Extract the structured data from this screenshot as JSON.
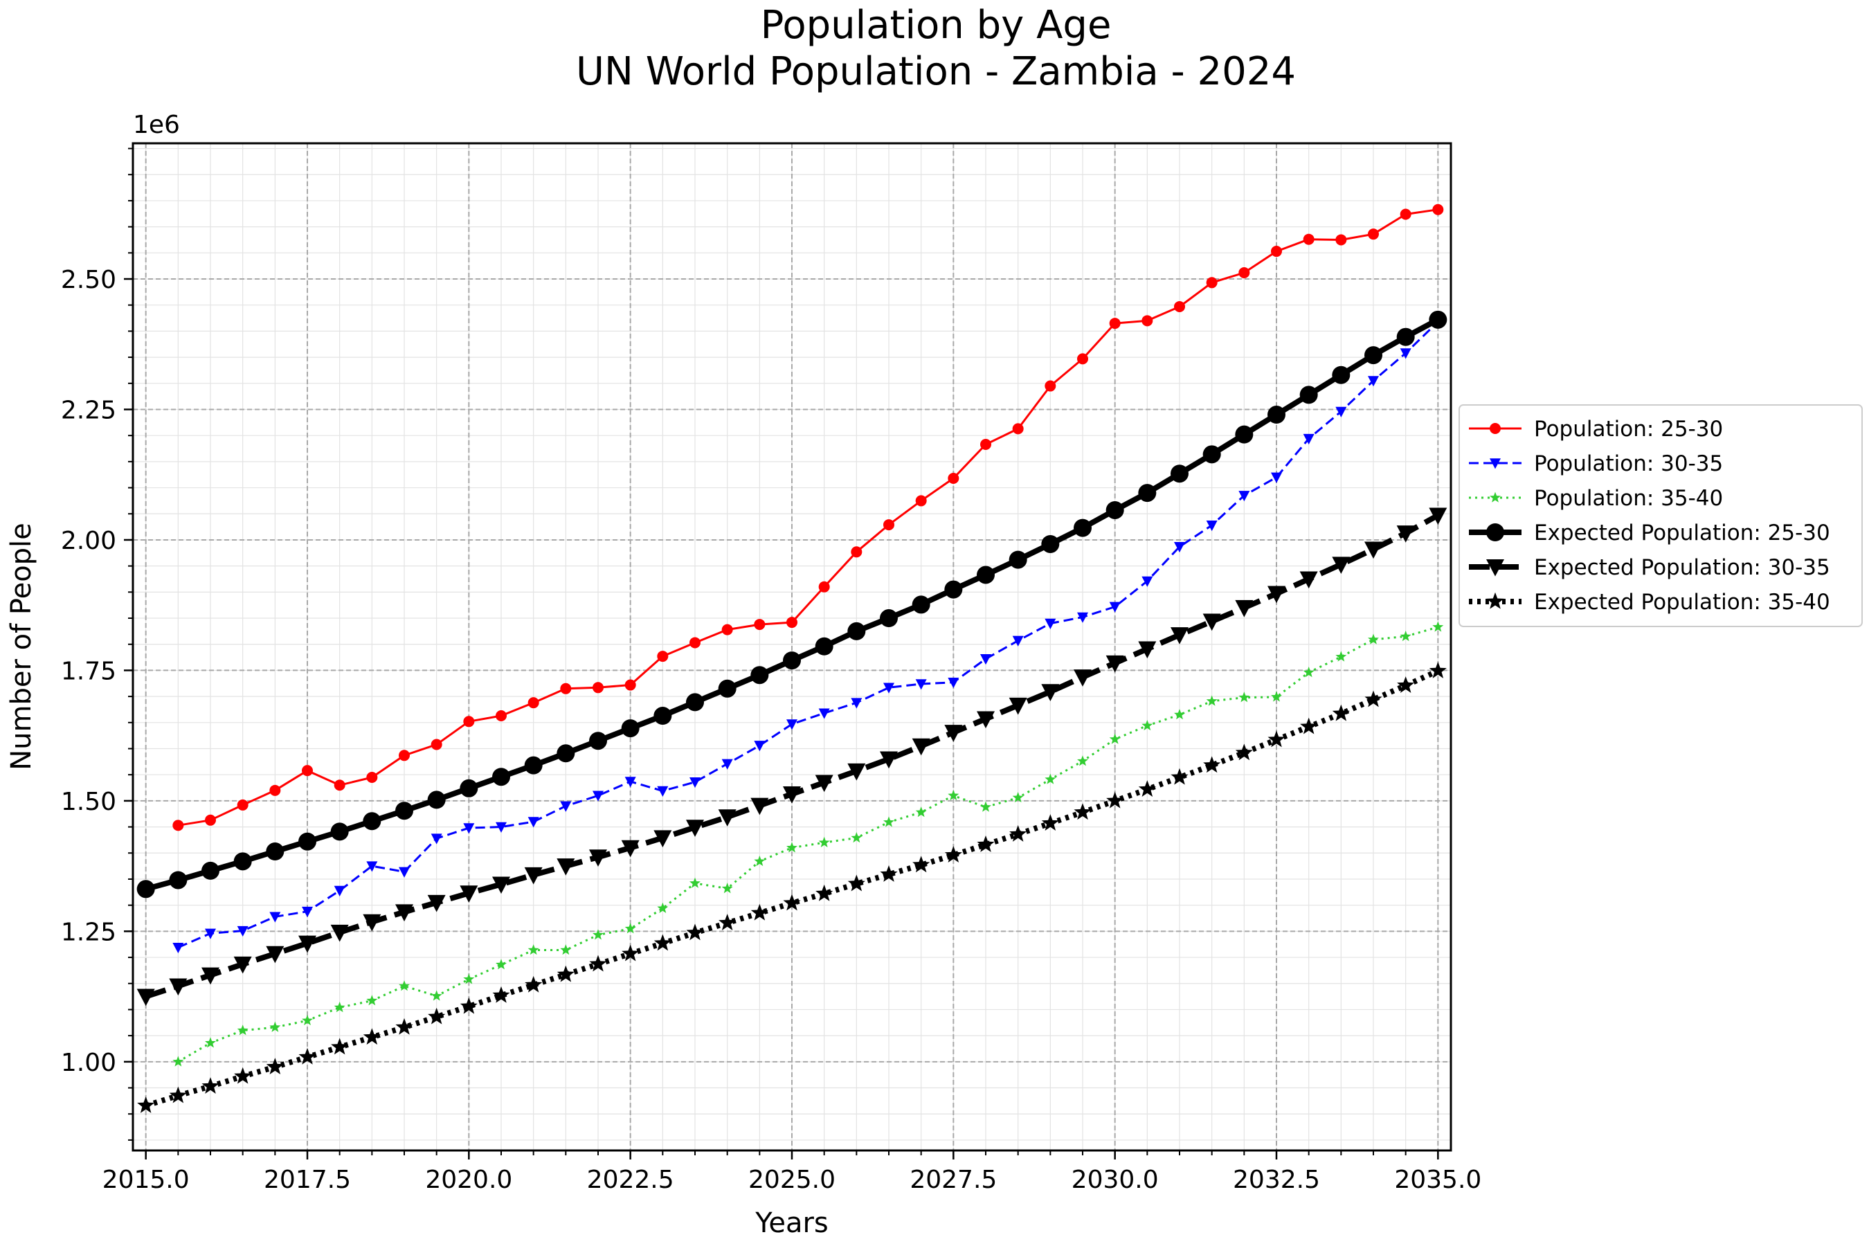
{
  "chart_data": {
    "type": "line",
    "title": "Population by Age",
    "subtitle": "UN World Population - Zambia - 2024",
    "xlabel": "Years",
    "ylabel": "Number of People",
    "y_offset_label": "1e6",
    "xlim": [
      2014.8,
      2035.2
    ],
    "ylim": [
      0.83,
      2.76
    ],
    "x_ticks": [
      2015.0,
      2017.5,
      2020.0,
      2022.5,
      2025.0,
      2027.5,
      2030.0,
      2032.5,
      2035.0
    ],
    "x_tick_labels": [
      "2015.0",
      "2017.5",
      "2020.0",
      "2022.5",
      "2025.0",
      "2027.5",
      "2030.0",
      "2032.5",
      "2035.0"
    ],
    "y_ticks": [
      1.0,
      1.25,
      1.5,
      1.75,
      2.0,
      2.25,
      2.5
    ],
    "y_tick_labels": [
      "1.00",
      "1.25",
      "1.50",
      "1.75",
      "2.00",
      "2.25",
      "2.50"
    ],
    "grid": true,
    "legend_position": "right, outside plot",
    "series": [
      {
        "name": "Population: 25-30",
        "color": "#ff0000",
        "dash": "solid",
        "marker": "circle",
        "weight": "thin",
        "x": [
          2015.5,
          2016.0,
          2016.5,
          2017.0,
          2017.5,
          2018.0,
          2018.5,
          2019.0,
          2019.5,
          2020.0,
          2020.5,
          2021.0,
          2021.5,
          2022.0,
          2022.5,
          2023.0,
          2023.5,
          2024.0,
          2024.5,
          2025.0,
          2025.5,
          2026.0,
          2026.5,
          2027.0,
          2027.5,
          2028.0,
          2028.5,
          2029.0,
          2029.5,
          2030.0,
          2030.5,
          2031.0,
          2031.5,
          2032.0,
          2032.5,
          2033.0,
          2033.5,
          2034.0,
          2034.5,
          2035.0
        ],
        "values": [
          1.453,
          1.463,
          1.492,
          1.52,
          1.558,
          1.53,
          1.545,
          1.587,
          1.608,
          1.652,
          1.663,
          1.688,
          1.715,
          1.717,
          1.722,
          1.777,
          1.803,
          1.828,
          1.838,
          1.842,
          1.91,
          1.977,
          2.029,
          2.075,
          2.118,
          2.183,
          2.213,
          2.295,
          2.347,
          2.415,
          2.42,
          2.447,
          2.493,
          2.512,
          2.553,
          2.576,
          2.575,
          2.586,
          2.624,
          2.633
        ]
      },
      {
        "name": "Population: 30-35",
        "color": "#0000ff",
        "dash": "dashed",
        "marker": "triangle-down",
        "weight": "thin",
        "x": [
          2015.5,
          2016.0,
          2016.5,
          2017.0,
          2017.5,
          2018.0,
          2018.5,
          2019.0,
          2019.5,
          2020.0,
          2020.5,
          2021.0,
          2021.5,
          2022.0,
          2022.5,
          2023.0,
          2023.5,
          2024.0,
          2024.5,
          2025.0,
          2025.5,
          2026.0,
          2026.5,
          2027.0,
          2027.5,
          2028.0,
          2028.5,
          2029.0,
          2029.5,
          2030.0,
          2030.5,
          2031.0,
          2031.5,
          2032.0,
          2032.5,
          2033.0,
          2033.5,
          2034.0,
          2034.5,
          2035.0
        ],
        "values": [
          1.219,
          1.246,
          1.251,
          1.278,
          1.288,
          1.328,
          1.375,
          1.364,
          1.428,
          1.448,
          1.45,
          1.46,
          1.49,
          1.51,
          1.537,
          1.519,
          1.536,
          1.571,
          1.606,
          1.647,
          1.668,
          1.688,
          1.717,
          1.724,
          1.727,
          1.772,
          1.807,
          1.84,
          1.852,
          1.872,
          1.921,
          1.987,
          2.028,
          2.085,
          2.12,
          2.194,
          2.246,
          2.305,
          2.358,
          2.418
        ]
      },
      {
        "name": "Population: 35-40",
        "color": "#32cd32",
        "dash": "dotted",
        "marker": "star",
        "weight": "thin",
        "x": [
          2015.5,
          2016.0,
          2016.5,
          2017.0,
          2017.5,
          2018.0,
          2018.5,
          2019.0,
          2019.5,
          2020.0,
          2020.5,
          2021.0,
          2021.5,
          2022.0,
          2022.5,
          2023.0,
          2023.5,
          2024.0,
          2024.5,
          2025.0,
          2025.5,
          2026.0,
          2026.5,
          2027.0,
          2027.5,
          2028.0,
          2028.5,
          2029.0,
          2029.5,
          2030.0,
          2030.5,
          2031.0,
          2031.5,
          2032.0,
          2032.5,
          2033.0,
          2033.5,
          2034.0,
          2034.5,
          2035.0
        ],
        "values": [
          1.0,
          1.036,
          1.06,
          1.066,
          1.079,
          1.104,
          1.117,
          1.145,
          1.126,
          1.158,
          1.186,
          1.214,
          1.214,
          1.243,
          1.255,
          1.294,
          1.342,
          1.332,
          1.384,
          1.41,
          1.42,
          1.429,
          1.459,
          1.478,
          1.51,
          1.488,
          1.506,
          1.541,
          1.576,
          1.618,
          1.644,
          1.665,
          1.691,
          1.698,
          1.699,
          1.746,
          1.776,
          1.809,
          1.815,
          1.833
        ]
      },
      {
        "name": "Expected Population: 25-30",
        "color": "#000000",
        "dash": "solid",
        "marker": "circle",
        "weight": "thick",
        "x": [
          2015.0,
          2015.5,
          2016.0,
          2016.5,
          2017.0,
          2017.5,
          2018.0,
          2018.5,
          2019.0,
          2019.5,
          2020.0,
          2020.5,
          2021.0,
          2021.5,
          2022.0,
          2022.5,
          2023.0,
          2023.5,
          2024.0,
          2024.5,
          2025.0,
          2025.5,
          2026.0,
          2026.5,
          2027.0,
          2027.5,
          2028.0,
          2028.5,
          2029.0,
          2029.5,
          2030.0,
          2030.5,
          2031.0,
          2031.5,
          2032.0,
          2032.5,
          2033.0,
          2033.5,
          2034.0,
          2034.5,
          2035.0
        ],
        "values": [
          1.331,
          1.348,
          1.366,
          1.384,
          1.403,
          1.422,
          1.441,
          1.461,
          1.481,
          1.502,
          1.524,
          1.546,
          1.568,
          1.591,
          1.615,
          1.639,
          1.663,
          1.689,
          1.715,
          1.741,
          1.769,
          1.796,
          1.825,
          1.85,
          1.876,
          1.905,
          1.933,
          1.962,
          1.992,
          2.023,
          2.057,
          2.09,
          2.127,
          2.164,
          2.202,
          2.24,
          2.278,
          2.316,
          2.354,
          2.389,
          2.422
        ]
      },
      {
        "name": "Expected Population: 30-35",
        "color": "#000000",
        "dash": "dashed",
        "marker": "triangle-down",
        "weight": "thick",
        "x": [
          2015.0,
          2015.5,
          2016.0,
          2016.5,
          2017.0,
          2017.5,
          2018.0,
          2018.5,
          2019.0,
          2019.5,
          2020.0,
          2020.5,
          2021.0,
          2021.5,
          2022.0,
          2022.5,
          2023.0,
          2023.5,
          2024.0,
          2024.5,
          2025.0,
          2025.5,
          2026.0,
          2026.5,
          2027.0,
          2027.5,
          2028.0,
          2028.5,
          2029.0,
          2029.5,
          2030.0,
          2030.5,
          2031.0,
          2031.5,
          2032.0,
          2032.5,
          2033.0,
          2033.5,
          2034.0,
          2034.5,
          2035.0
        ],
        "values": [
          1.125,
          1.145,
          1.166,
          1.187,
          1.207,
          1.227,
          1.248,
          1.268,
          1.287,
          1.305,
          1.323,
          1.34,
          1.358,
          1.375,
          1.392,
          1.41,
          1.429,
          1.449,
          1.469,
          1.491,
          1.513,
          1.535,
          1.557,
          1.58,
          1.605,
          1.631,
          1.657,
          1.683,
          1.709,
          1.737,
          1.764,
          1.791,
          1.818,
          1.844,
          1.87,
          1.897,
          1.925,
          1.953,
          1.982,
          2.013,
          2.047
        ]
      },
      {
        "name": "Expected Population: 35-40",
        "color": "#000000",
        "dash": "dotted",
        "marker": "star",
        "weight": "thick",
        "x": [
          2015.0,
          2015.5,
          2016.0,
          2016.5,
          2017.0,
          2017.5,
          2018.0,
          2018.5,
          2019.0,
          2019.5,
          2020.0,
          2020.5,
          2021.0,
          2021.5,
          2022.0,
          2022.5,
          2023.0,
          2023.5,
          2024.0,
          2024.5,
          2025.0,
          2025.5,
          2026.0,
          2026.5,
          2027.0,
          2027.5,
          2028.0,
          2028.5,
          2029.0,
          2029.5,
          2030.0,
          2030.5,
          2031.0,
          2031.5,
          2032.0,
          2032.5,
          2033.0,
          2033.5,
          2034.0,
          2034.5,
          2035.0
        ],
        "values": [
          0.916,
          0.935,
          0.953,
          0.972,
          0.99,
          1.009,
          1.028,
          1.047,
          1.066,
          1.086,
          1.106,
          1.127,
          1.147,
          1.167,
          1.187,
          1.207,
          1.227,
          1.247,
          1.266,
          1.285,
          1.304,
          1.322,
          1.341,
          1.359,
          1.377,
          1.396,
          1.416,
          1.436,
          1.457,
          1.478,
          1.5,
          1.522,
          1.545,
          1.568,
          1.592,
          1.617,
          1.642,
          1.667,
          1.694,
          1.721,
          1.749
        ]
      }
    ]
  }
}
